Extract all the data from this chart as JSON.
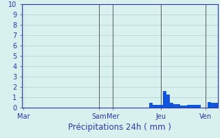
{
  "xlabel": "Précipitations 24h ( mm )",
  "background_color": "#d8f0ee",
  "bar_color": "#1155dd",
  "grid_color": "#b0cece",
  "axis_color": "#3333aa",
  "tick_label_color": "#3333aa",
  "xlabel_color": "#3333aa",
  "vline_color": "#555566",
  "ylim": [
    0,
    10
  ],
  "yticks": [
    0,
    1,
    2,
    3,
    4,
    5,
    6,
    7,
    8,
    9,
    10
  ],
  "bar_values": [
    0,
    0,
    0,
    0,
    0,
    0,
    0,
    0,
    0,
    0,
    0,
    0,
    0,
    0,
    0,
    0,
    0,
    0,
    0,
    0,
    0,
    0,
    0,
    0,
    0,
    0,
    0,
    0,
    0,
    0,
    0,
    0,
    0,
    0,
    0,
    0,
    0,
    0.5,
    0.3,
    0.25,
    0.25,
    1.6,
    1.3,
    0.45,
    0.35,
    0.35,
    0.2,
    0.2,
    0.3,
    0.25,
    0.25,
    0.25,
    0,
    0,
    0.55,
    0.45,
    0.45
  ],
  "day_labels": [
    "Mar",
    "Sam",
    "Mer",
    "Jeu",
    "Ven"
  ],
  "day_tick_x": [
    0,
    22,
    26,
    40,
    53
  ],
  "vline_x": [
    22,
    26,
    40,
    53
  ],
  "xlabel_fontsize": 8.5,
  "tick_fontsize": 7,
  "day_label_fontsize": 7
}
